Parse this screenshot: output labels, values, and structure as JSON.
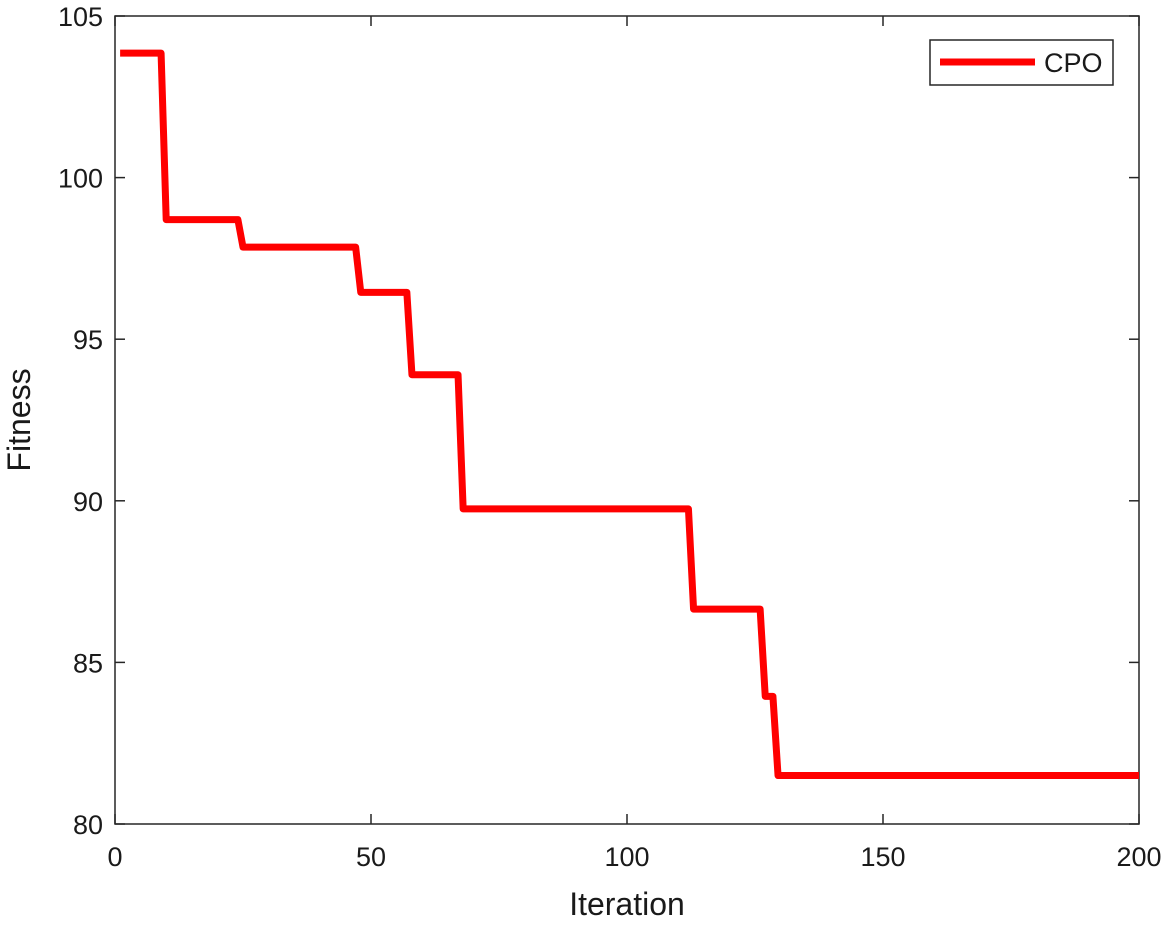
{
  "chart_data": {
    "type": "line",
    "xlabel": "Iteration",
    "ylabel": "Fitness",
    "xlim": [
      0,
      200
    ],
    "ylim": [
      80,
      105
    ],
    "xticks": [
      0,
      50,
      100,
      150,
      200
    ],
    "yticks": [
      80,
      85,
      90,
      95,
      100,
      105
    ],
    "grid": false,
    "legend": {
      "placement": "top-right"
    },
    "series": [
      {
        "name": "CPO",
        "color": "#ff0000",
        "step": true,
        "x": [
          1,
          9,
          10,
          24,
          25,
          47,
          48,
          57,
          58,
          67,
          68,
          112,
          113,
          126,
          127,
          128.5,
          129.5,
          200
        ],
        "y": [
          103.85,
          103.85,
          98.7,
          98.7,
          97.85,
          97.85,
          96.45,
          96.45,
          93.9,
          93.9,
          89.75,
          89.75,
          86.65,
          86.65,
          83.95,
          83.95,
          81.5,
          81.5
        ]
      }
    ]
  }
}
